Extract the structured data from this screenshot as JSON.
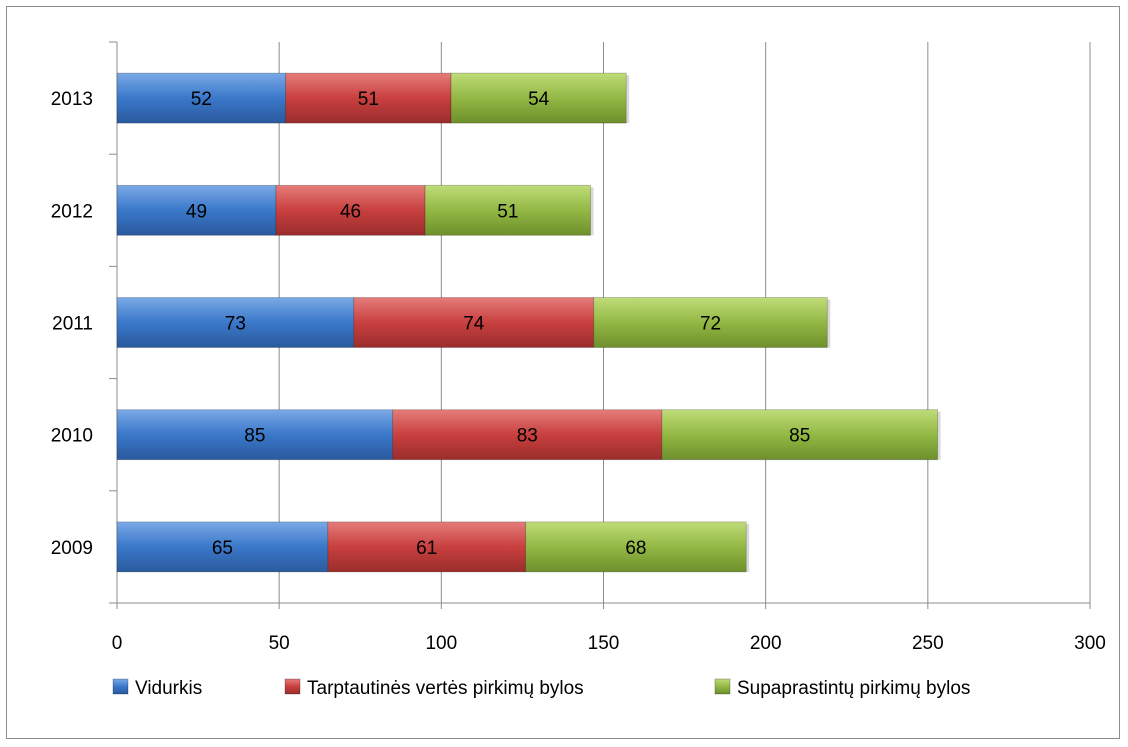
{
  "chart_data": {
    "type": "bar",
    "orientation": "horizontal",
    "stacked": true,
    "categories": [
      "2009",
      "2010",
      "2011",
      "2012",
      "2013"
    ],
    "series": [
      {
        "name": "Vidurkis",
        "values": [
          65,
          85,
          73,
          49,
          52
        ],
        "color": "#3a78c9"
      },
      {
        "name": "Tarptautinės vertės pirkimų bylos",
        "values": [
          61,
          83,
          74,
          46,
          51
        ],
        "color": "#c8403f"
      },
      {
        "name": "Supaprastintų pirkimų bylos",
        "values": [
          68,
          85,
          72,
          51,
          54
        ],
        "color": "#93b844"
      }
    ],
    "xlim": [
      0,
      300
    ],
    "xticks": [
      "0",
      "50",
      "100",
      "150",
      "200",
      "250",
      "300"
    ],
    "grid": "vertical",
    "legend_position": "bottom"
  }
}
